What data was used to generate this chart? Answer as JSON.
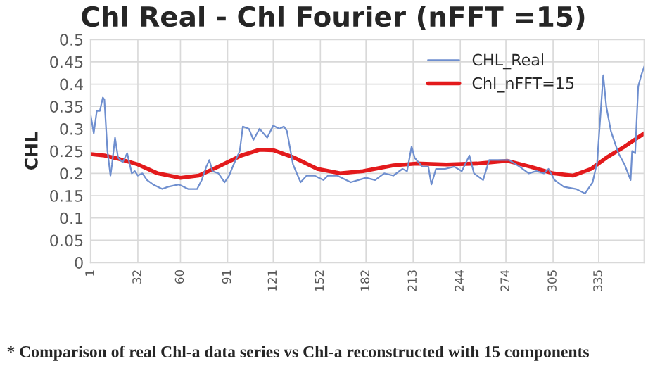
{
  "chart_data": {
    "type": "line",
    "title": "Chl Real - Chl Fourier (nFFT =15)",
    "ylabel": "CHL",
    "annotations": [
      "* Comparison of real Chl-a data series vs Chl-a reconstructed with 15 components"
    ],
    "xlim": [
      1,
      365
    ],
    "xticks": [
      1,
      32,
      60,
      91,
      121,
      152,
      182,
      213,
      244,
      274,
      305,
      335
    ],
    "ylim": [
      0,
      0.5
    ],
    "yticks": [
      0,
      0.05,
      0.1,
      0.15,
      0.2,
      0.25,
      0.3,
      0.35,
      0.4,
      0.45,
      0.5
    ],
    "grid": true,
    "legend": "top right",
    "marker": "none",
    "line_style": "solid",
    "series": [
      {
        "name": "CHL_Real",
        "color": "#6f8fcf",
        "x": [
          1,
          3,
          5,
          7,
          9,
          10,
          12,
          14,
          15,
          17,
          19,
          22,
          25,
          28,
          30,
          32,
          35,
          38,
          42,
          48,
          52,
          59,
          65,
          71,
          74,
          77,
          79,
          81,
          85,
          89,
          92,
          95,
          99,
          101,
          105,
          108,
          112,
          117,
          121,
          125,
          128,
          130,
          134,
          139,
          143,
          148,
          154,
          157,
          163,
          172,
          182,
          188,
          194,
          200,
          206,
          209,
          212,
          214,
          219,
          223,
          225,
          228,
          234,
          240,
          245,
          250,
          253,
          259,
          263,
          269,
          276,
          283,
          289,
          294,
          299,
          302,
          306,
          312,
          320,
          326,
          331,
          334,
          338,
          340,
          343,
          348,
          352,
          356,
          357,
          359,
          361,
          363,
          365
        ],
        "values": [
          0.33,
          0.29,
          0.34,
          0.34,
          0.37,
          0.365,
          0.25,
          0.195,
          0.22,
          0.28,
          0.235,
          0.225,
          0.245,
          0.2,
          0.205,
          0.195,
          0.2,
          0.185,
          0.175,
          0.165,
          0.17,
          0.175,
          0.165,
          0.165,
          0.185,
          0.215,
          0.23,
          0.205,
          0.2,
          0.18,
          0.195,
          0.22,
          0.25,
          0.305,
          0.3,
          0.275,
          0.3,
          0.28,
          0.307,
          0.3,
          0.305,
          0.295,
          0.22,
          0.18,
          0.195,
          0.195,
          0.185,
          0.195,
          0.195,
          0.18,
          0.19,
          0.185,
          0.2,
          0.195,
          0.21,
          0.205,
          0.26,
          0.235,
          0.215,
          0.215,
          0.175,
          0.21,
          0.21,
          0.215,
          0.205,
          0.24,
          0.2,
          0.185,
          0.23,
          0.23,
          0.23,
          0.215,
          0.2,
          0.205,
          0.2,
          0.21,
          0.185,
          0.17,
          0.165,
          0.155,
          0.18,
          0.225,
          0.42,
          0.35,
          0.295,
          0.245,
          0.22,
          0.185,
          0.25,
          0.245,
          0.395,
          0.42,
          0.44
        ]
      },
      {
        "name": "Chl_nFFT=15",
        "color": "#e31a1c",
        "x": [
          1,
          10,
          20,
          32,
          45,
          60,
          72,
          85,
          100,
          112,
          121,
          135,
          150,
          165,
          180,
          200,
          215,
          235,
          255,
          275,
          290,
          305,
          318,
          330,
          340,
          352,
          365
        ],
        "values": [
          0.243,
          0.24,
          0.232,
          0.22,
          0.2,
          0.19,
          0.195,
          0.215,
          0.24,
          0.253,
          0.252,
          0.235,
          0.21,
          0.2,
          0.205,
          0.218,
          0.222,
          0.22,
          0.222,
          0.228,
          0.215,
          0.2,
          0.195,
          0.21,
          0.235,
          0.26,
          0.29
        ]
      }
    ]
  }
}
